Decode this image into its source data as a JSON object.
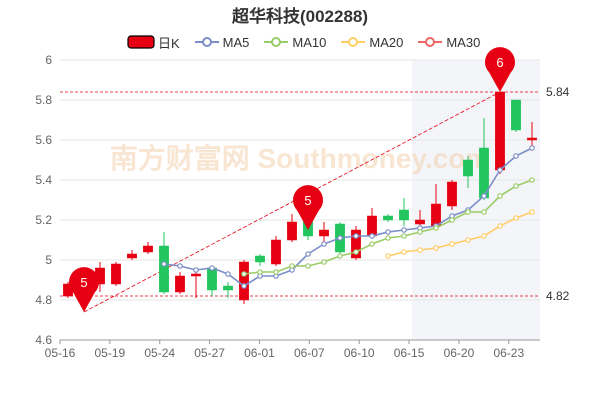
{
  "chart_data": {
    "type": "candlestick",
    "title": "超华科技(002288)",
    "x_tick_labels": [
      "05-16",
      "05-19",
      "05-24",
      "05-27",
      "06-01",
      "06-07",
      "06-10",
      "06-15",
      "06-20",
      "06-23"
    ],
    "ylim": [
      4.6,
      6.0
    ],
    "y_ticks": [
      4.6,
      4.8,
      5.0,
      5.2,
      5.4,
      5.6,
      5.8,
      6.0
    ],
    "y_tick_labels": [
      "4.6",
      "4.8",
      "5",
      "5.2",
      "5.4",
      "5.6",
      "5.8",
      "6"
    ],
    "grid": true,
    "legend_position": "top",
    "legend": [
      {
        "name": "日K",
        "type": "candle",
        "color": "#e60012"
      },
      {
        "name": "MA5",
        "type": "line",
        "color": "#7b8ec8"
      },
      {
        "name": "MA10",
        "type": "line",
        "color": "#99cc66"
      },
      {
        "name": "MA20",
        "type": "line",
        "color": "#ffcc66"
      },
      {
        "name": "MA30",
        "type": "line",
        "color": "#ee6666"
      }
    ],
    "up_color": "#e60012",
    "down_color": "#22c55e",
    "candles": [
      {
        "o": 4.82,
        "c": 4.88,
        "h": 4.89,
        "l": 4.81
      },
      {
        "o": 4.86,
        "c": 4.84,
        "h": 4.88,
        "l": 4.83
      },
      {
        "o": 4.88,
        "c": 4.96,
        "h": 4.99,
        "l": 4.84
      },
      {
        "o": 4.88,
        "c": 4.98,
        "h": 4.99,
        "l": 4.87
      },
      {
        "o": 5.01,
        "c": 5.03,
        "h": 5.05,
        "l": 5.0
      },
      {
        "o": 5.04,
        "c": 5.07,
        "h": 5.09,
        "l": 5.03
      },
      {
        "o": 5.07,
        "c": 4.84,
        "h": 5.14,
        "l": 4.83
      },
      {
        "o": 4.84,
        "c": 4.92,
        "h": 4.94,
        "l": 4.83
      },
      {
        "o": 4.92,
        "c": 4.93,
        "h": 4.96,
        "l": 4.81
      },
      {
        "o": 4.96,
        "c": 4.85,
        "h": 4.97,
        "l": 4.82
      },
      {
        "o": 4.87,
        "c": 4.85,
        "h": 4.89,
        "l": 4.81
      },
      {
        "o": 4.8,
        "c": 4.99,
        "h": 5.0,
        "l": 4.78
      },
      {
        "o": 5.02,
        "c": 4.99,
        "h": 5.03,
        "l": 4.97
      },
      {
        "o": 4.98,
        "c": 5.1,
        "h": 5.12,
        "l": 4.97
      },
      {
        "o": 5.1,
        "c": 5.19,
        "h": 5.23,
        "l": 5.09
      },
      {
        "o": 5.2,
        "c": 5.12,
        "h": 5.23,
        "l": 5.1
      },
      {
        "o": 5.12,
        "c": 5.15,
        "h": 5.19,
        "l": 5.07
      },
      {
        "o": 5.18,
        "c": 5.04,
        "h": 5.19,
        "l": 5.03
      },
      {
        "o": 5.01,
        "c": 5.15,
        "h": 5.17,
        "l": 5.0
      },
      {
        "o": 5.12,
        "c": 5.22,
        "h": 5.26,
        "l": 5.11
      },
      {
        "o": 5.22,
        "c": 5.2,
        "h": 5.23,
        "l": 5.19
      },
      {
        "o": 5.25,
        "c": 5.2,
        "h": 5.31,
        "l": 5.17
      },
      {
        "o": 5.18,
        "c": 5.2,
        "h": 5.25,
        "l": 5.16
      },
      {
        "o": 5.17,
        "c": 5.28,
        "h": 5.38,
        "l": 5.15
      },
      {
        "o": 5.27,
        "c": 5.39,
        "h": 5.4,
        "l": 5.25
      },
      {
        "o": 5.5,
        "c": 5.42,
        "h": 5.52,
        "l": 5.36
      },
      {
        "o": 5.56,
        "c": 5.31,
        "h": 5.71,
        "l": 5.3
      },
      {
        "o": 5.45,
        "c": 5.84,
        "h": 5.84,
        "l": 5.43
      },
      {
        "o": 5.8,
        "c": 5.65,
        "h": 5.8,
        "l": 5.64
      },
      {
        "o": 5.6,
        "c": 5.61,
        "h": 5.69,
        "l": 5.55
      }
    ],
    "series": [
      {
        "name": "MA5",
        "color": "#7b8ec8",
        "start": 6,
        "values": [
          4.98,
          4.97,
          4.95,
          4.96,
          4.93,
          4.87,
          4.92,
          4.92,
          4.95,
          5.03,
          5.08,
          5.11,
          5.12,
          5.12,
          5.14,
          5.15,
          5.16,
          5.17,
          5.22,
          5.25,
          5.32,
          5.45,
          5.52,
          5.56
        ]
      },
      {
        "name": "MA10",
        "color": "#99cc66",
        "start": 11,
        "values": [
          4.93,
          4.94,
          4.94,
          4.97,
          4.97,
          4.99,
          5.02,
          5.04,
          5.08,
          5.11,
          5.12,
          5.14,
          5.16,
          5.2,
          5.24,
          5.24,
          5.32,
          5.37,
          5.4
        ]
      },
      {
        "name": "MA20",
        "color": "#ffcc66",
        "start": 20,
        "values": [
          5.02,
          5.04,
          5.05,
          5.06,
          5.08,
          5.1,
          5.12,
          5.17,
          5.21,
          5.24
        ]
      }
    ],
    "annotations": [
      {
        "label": "5",
        "type": "pin",
        "color": "#e60012",
        "at_candle": 1,
        "value": 4.74
      },
      {
        "label": "5",
        "type": "pin",
        "color": "#e60012",
        "at_candle": 15,
        "value": 5.15
      },
      {
        "label": "6",
        "type": "pin",
        "color": "#e60012",
        "at_candle": 27,
        "value": 5.84
      }
    ],
    "reference_lines": [
      {
        "value": 5.84,
        "label": "5.84",
        "color": "#e60012"
      },
      {
        "value": 4.82,
        "label": "4.82",
        "color": "#e60012"
      }
    ],
    "trend_line": {
      "from_candle": 1,
      "from_value": 4.74,
      "to_candle": 27,
      "to_value": 5.84,
      "color": "#e60012"
    },
    "watermark": "南方财富网 Southmoney.com"
  }
}
